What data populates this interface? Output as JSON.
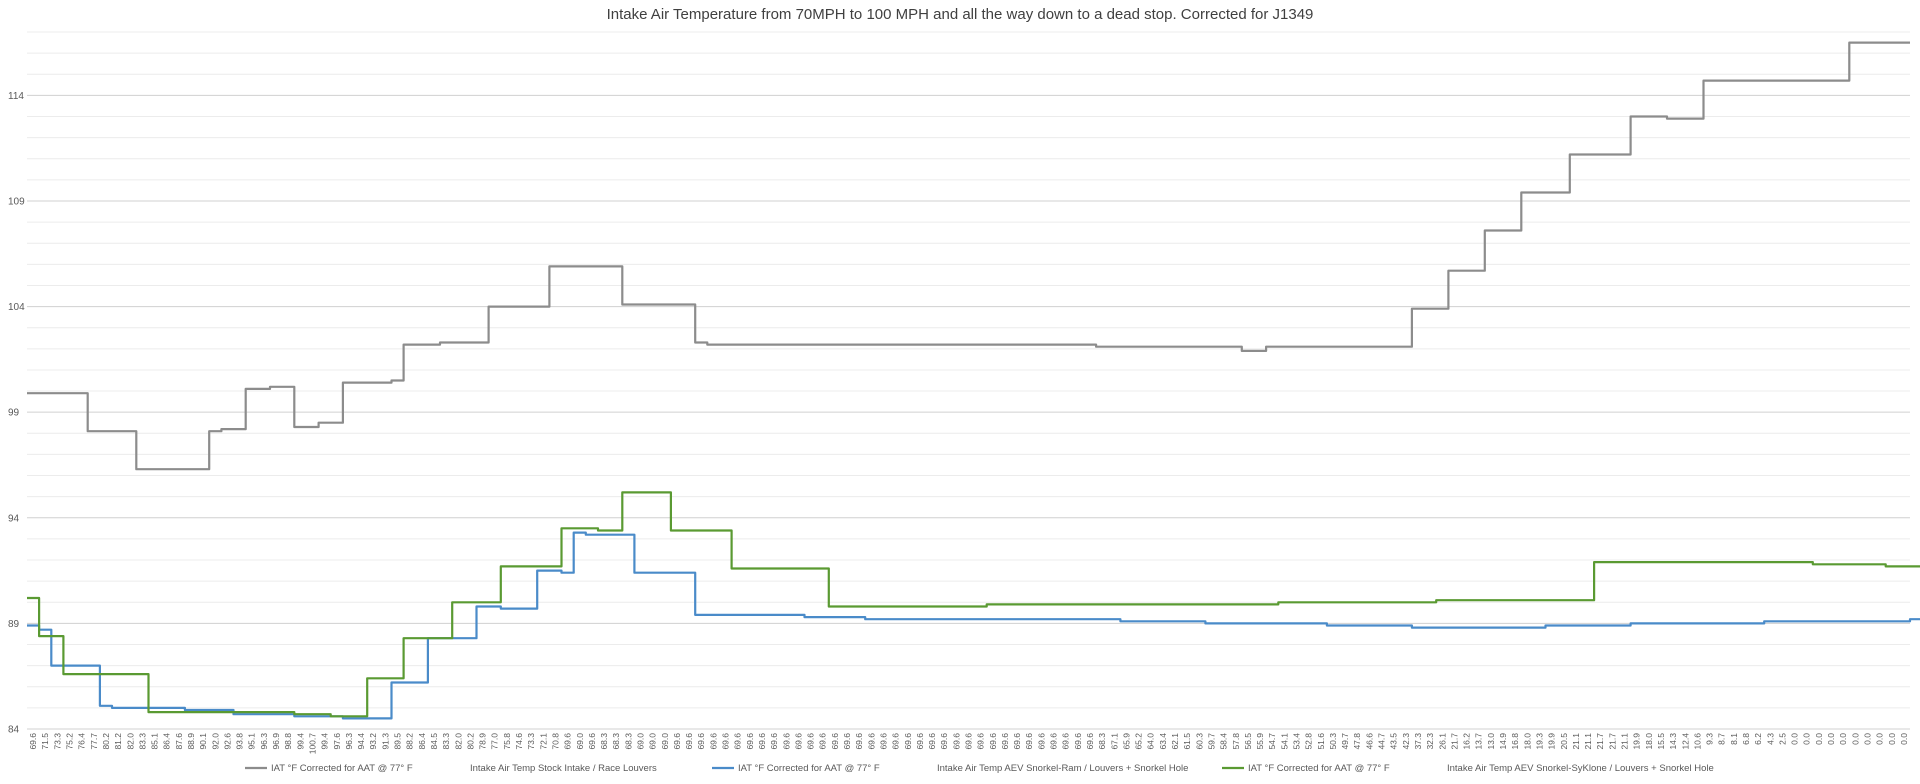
{
  "chart_data": {
    "type": "line",
    "title": "Intake Air Temperature from 70MPH to 100 MPH and all the way down to a dead stop. Corrected for J1349",
    "xlabel": "",
    "ylabel": "",
    "ylim": [
      84,
      117
    ],
    "yticks": [
      84,
      89,
      94,
      99,
      104,
      109,
      114
    ],
    "grid": true,
    "legend_position": "bottom",
    "x_ticks": [
      "69.6",
      "71.5",
      "73.3",
      "75.2",
      "76.4",
      "77.7",
      "80.2",
      "81.2",
      "82.0",
      "83.3",
      "85.1",
      "86.4",
      "87.6",
      "88.9",
      "90.1",
      "92.0",
      "92.6",
      "93.8",
      "95.1",
      "96.3",
      "96.9",
      "98.8",
      "99.4",
      "100.7",
      "99.4",
      "97.6",
      "96.3",
      "94.4",
      "93.2",
      "91.3",
      "89.5",
      "88.2",
      "86.4",
      "84.5",
      "83.3",
      "82.0",
      "80.2",
      "78.9",
      "77.0",
      "75.8",
      "74.6",
      "73.3",
      "72.1",
      "70.8",
      "69.6",
      "69.0",
      "69.6",
      "68.3",
      "68.3",
      "68.3",
      "69.0",
      "69.0",
      "69.0",
      "69.6",
      "69.6",
      "69.6",
      "69.6",
      "69.6",
      "69.6",
      "69.6",
      "69.6",
      "69.6",
      "69.6",
      "69.6",
      "69.6",
      "69.6",
      "69.6",
      "69.6",
      "69.6",
      "69.6",
      "69.6",
      "69.6",
      "69.6",
      "69.6",
      "69.6",
      "69.6",
      "69.6",
      "69.6",
      "69.6",
      "69.6",
      "69.6",
      "69.6",
      "69.6",
      "69.6",
      "69.6",
      "69.6",
      "69.6",
      "69.6",
      "68.3",
      "67.1",
      "65.9",
      "65.2",
      "64.0",
      "63.4",
      "62.1",
      "61.5",
      "60.3",
      "59.7",
      "58.4",
      "57.8",
      "56.5",
      "55.9",
      "54.7",
      "54.1",
      "53.4",
      "52.8",
      "51.6",
      "50.3",
      "49.7",
      "47.8",
      "46.6",
      "44.7",
      "43.5",
      "42.3",
      "37.3",
      "32.3",
      "26.1",
      "21.7",
      "16.2",
      "13.7",
      "13.0",
      "14.9",
      "16.8",
      "18.0",
      "19.3",
      "19.9",
      "20.5",
      "21.1",
      "21.1",
      "21.7",
      "21.7",
      "21.1",
      "19.9",
      "18.0",
      "15.5",
      "14.3",
      "12.4",
      "10.6",
      "9.3",
      "8.7",
      "8.1",
      "6.8",
      "6.2",
      "4.3",
      "2.5",
      "0.0",
      "0.0",
      "0.0",
      "0.0",
      "0.0",
      "0.0",
      "0.0",
      "0.0",
      "0.0",
      "0.0"
    ],
    "series": [
      {
        "name": "IAT °F Corrected for AAT @ 77° F",
        "label": "Intake Air Temp Stock Intake / Race Louvers",
        "color": "#8c8c8c",
        "values": [
          99.9,
          99.9,
          99.9,
          99.9,
          99.9,
          98.1,
          98.1,
          98.1,
          98.1,
          96.3,
          96.3,
          96.3,
          96.3,
          96.3,
          96.3,
          98.1,
          98.2,
          98.2,
          100.1,
          100.1,
          100.2,
          100.2,
          98.3,
          98.3,
          98.5,
          98.5,
          100.4,
          100.4,
          100.4,
          100.4,
          100.5,
          102.2,
          102.2,
          102.2,
          102.3,
          102.3,
          102.3,
          102.3,
          104.0,
          104.0,
          104.0,
          104.0,
          104.0,
          105.9,
          105.9,
          105.9,
          105.9,
          105.9,
          105.9,
          104.1,
          104.1,
          104.1,
          104.1,
          104.1,
          104.1,
          102.3,
          102.2,
          102.2,
          102.2,
          102.2,
          102.2,
          102.2,
          102.2,
          102.2,
          102.2,
          102.2,
          102.2,
          102.2,
          102.2,
          102.2,
          102.2,
          102.2,
          102.2,
          102.2,
          102.2,
          102.2,
          102.2,
          102.2,
          102.2,
          102.2,
          102.2,
          102.2,
          102.2,
          102.2,
          102.2,
          102.2,
          102.2,
          102.2,
          102.1,
          102.1,
          102.1,
          102.1,
          102.1,
          102.1,
          102.1,
          102.1,
          102.1,
          102.1,
          102.1,
          102.1,
          101.9,
          101.9,
          102.1,
          102.1,
          102.1,
          102.1,
          102.1,
          102.1,
          102.1,
          102.1,
          102.1,
          102.1,
          102.1,
          102.1,
          103.9,
          103.9,
          103.9,
          105.7,
          105.7,
          105.7,
          107.6,
          107.6,
          107.6,
          109.4,
          109.4,
          109.4,
          109.4,
          111.2,
          111.2,
          111.2,
          111.2,
          111.2,
          113.0,
          113.0,
          113.0,
          112.9,
          112.9,
          112.9,
          114.7,
          114.7,
          114.7,
          114.7,
          114.7,
          114.7,
          114.7,
          114.7,
          114.7,
          114.7,
          114.7,
          114.7,
          116.5,
          116.5,
          116.5,
          116.5,
          116.5
        ]
      },
      {
        "name": "IAT °F Corrected for AAT @ 77° F",
        "label": "Intake Air Temp AEV Snorkel-Ram / Louvers + Snorkel Hole",
        "color": "#4a8bc9",
        "values": [
          88.9,
          88.7,
          87.0,
          87.0,
          87.0,
          87.0,
          85.1,
          85.0,
          85.0,
          85.0,
          85.0,
          85.0,
          85.0,
          84.9,
          84.9,
          84.9,
          84.9,
          84.7,
          84.7,
          84.7,
          84.7,
          84.7,
          84.6,
          84.6,
          84.6,
          84.6,
          84.5,
          84.5,
          84.5,
          84.5,
          86.2,
          86.2,
          86.2,
          88.3,
          88.3,
          88.3,
          88.3,
          89.8,
          89.8,
          89.7,
          89.7,
          89.7,
          91.5,
          91.5,
          91.4,
          93.3,
          93.2,
          93.2,
          93.2,
          93.2,
          91.4,
          91.4,
          91.4,
          91.4,
          91.4,
          89.4,
          89.4,
          89.4,
          89.4,
          89.4,
          89.4,
          89.4,
          89.4,
          89.4,
          89.3,
          89.3,
          89.3,
          89.3,
          89.3,
          89.2,
          89.2,
          89.2,
          89.2,
          89.2,
          89.2,
          89.2,
          89.2,
          89.2,
          89.2,
          89.2,
          89.2,
          89.2,
          89.2,
          89.2,
          89.2,
          89.2,
          89.2,
          89.2,
          89.2,
          89.2,
          89.1,
          89.1,
          89.1,
          89.1,
          89.1,
          89.1,
          89.1,
          89.0,
          89.0,
          89.0,
          89.0,
          89.0,
          89.0,
          89.0,
          89.0,
          89.0,
          89.0,
          88.9,
          88.9,
          88.9,
          88.9,
          88.9,
          88.9,
          88.9,
          88.8,
          88.8,
          88.8,
          88.8,
          88.8,
          88.8,
          88.8,
          88.8,
          88.8,
          88.8,
          88.8,
          88.9,
          88.9,
          88.9,
          88.9,
          88.9,
          88.9,
          88.9,
          89.0,
          89.0,
          89.0,
          89.0,
          89.0,
          89.0,
          89.0,
          89.0,
          89.0,
          89.0,
          89.0,
          89.1,
          89.1,
          89.1,
          89.1,
          89.1,
          89.1,
          89.1,
          89.1,
          89.1,
          89.1,
          89.1,
          89.1,
          89.2,
          89.2,
          89.2,
          89.2,
          89.2,
          89.2
        ]
      },
      {
        "name": "IAT °F Corrected for AAT @ 77° F",
        "label": "Intake Air Temp AEV Snorkel-SyKlone / Louvers + Snorkel Hole",
        "color": "#5a9a32",
        "values": [
          90.2,
          88.4,
          88.4,
          86.6,
          86.6,
          86.6,
          86.6,
          86.6,
          86.6,
          86.6,
          84.8,
          84.8,
          84.8,
          84.8,
          84.8,
          84.8,
          84.8,
          84.8,
          84.8,
          84.8,
          84.8,
          84.8,
          84.7,
          84.7,
          84.7,
          84.6,
          84.6,
          84.6,
          86.4,
          86.4,
          86.4,
          88.3,
          88.3,
          88.3,
          88.3,
          90.0,
          90.0,
          90.0,
          90.0,
          91.7,
          91.7,
          91.7,
          91.7,
          91.7,
          93.5,
          93.5,
          93.5,
          93.4,
          93.4,
          95.2,
          95.2,
          95.2,
          95.2,
          93.4,
          93.4,
          93.4,
          93.4,
          93.4,
          91.6,
          91.6,
          91.6,
          91.6,
          91.6,
          91.6,
          91.6,
          91.6,
          89.8,
          89.8,
          89.8,
          89.8,
          89.8,
          89.8,
          89.8,
          89.8,
          89.8,
          89.8,
          89.8,
          89.8,
          89.8,
          89.9,
          89.9,
          89.9,
          89.9,
          89.9,
          89.9,
          89.9,
          89.9,
          89.9,
          89.9,
          89.9,
          89.9,
          89.9,
          89.9,
          89.9,
          89.9,
          89.9,
          89.9,
          89.9,
          89.9,
          89.9,
          89.9,
          89.9,
          89.9,
          90.0,
          90.0,
          90.0,
          90.0,
          90.0,
          90.0,
          90.0,
          90.0,
          90.0,
          90.0,
          90.0,
          90.0,
          90.0,
          90.1,
          90.1,
          90.1,
          90.1,
          90.1,
          90.1,
          90.1,
          90.1,
          90.1,
          90.1,
          90.1,
          90.1,
          90.1,
          91.9,
          91.9,
          91.9,
          91.9,
          91.9,
          91.9,
          91.9,
          91.9,
          91.9,
          91.9,
          91.9,
          91.9,
          91.9,
          91.9,
          91.9,
          91.9,
          91.9,
          91.9,
          91.8,
          91.8,
          91.8,
          91.8,
          91.8,
          91.8,
          91.7,
          91.7,
          91.7
        ]
      }
    ]
  }
}
